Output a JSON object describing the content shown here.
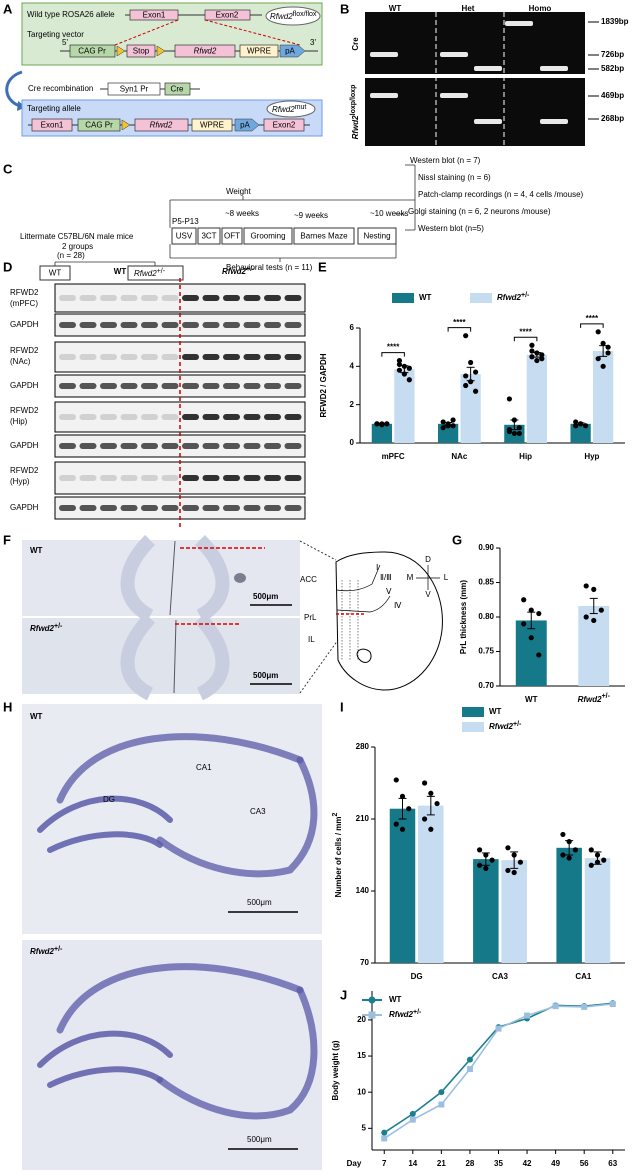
{
  "labels": [
    "A",
    "B",
    "C",
    "D",
    "E",
    "F",
    "G",
    "H",
    "I",
    "J"
  ],
  "a": {
    "wild_type": "Wild type ROSA26 allele",
    "exon1": "Exon1",
    "exon2": "Exon2",
    "flox": {
      "text": "Rfwd2",
      "sup": "flox/flox"
    },
    "vector": "Targeting vector",
    "five": "5'",
    "cag": "CAG Pr",
    "stop": "Stop",
    "rfwd2": "Rfwd2",
    "wpre": "WPRE",
    "pa": "pA",
    "three": "3'",
    "cre_recomb": "Cre recombination",
    "syn1": "Syn1 Pr",
    "cre": "Cre",
    "allele": "Targeting allele",
    "mut": {
      "text": "Rfwd2",
      "sup": "mut"
    }
  },
  "b": {
    "lanes": [
      "WT",
      "Het",
      "Homo"
    ],
    "cre": "Cre",
    "loxp": {
      "text": "Rfwd2",
      "sup": "loxp/loxp"
    },
    "sizes": [
      "1839bp",
      "726bp",
      "582bp",
      "469bp",
      "268bp"
    ]
  },
  "c": {
    "source": "Littermate C57BL/6N male mice",
    "groups": "2 groups",
    "n": "(n = 28)",
    "wt": "WT",
    "het": {
      "text": "Rfwd2",
      "sup": "+/-"
    },
    "weight": "Weight",
    "times": [
      "P5-P13",
      "~8 weeks",
      "~9 weeks",
      "~10 weeks"
    ],
    "tests": [
      "USV",
      "3CT",
      "OFT",
      "Grooming",
      "Barnes Maze",
      "Nesting"
    ],
    "behavior": "Behavioral tests (n = 11)",
    "assays": [
      "Western blot (n = 7)",
      "Nissl staining (n = 6)",
      "Patch-clamp recordings (n = 4, 4 cells /mouse)",
      "Golgi staining (n = 6, 2 neurons /mouse)",
      "Western blot (n=5)"
    ]
  },
  "d": {
    "wt": "WT",
    "het": {
      "text": "Rfwd2",
      "sup": "+/-"
    },
    "rows": [
      {
        "label": "RFWD2",
        "region": "(mPFC)"
      },
      {
        "label": "GAPDH"
      },
      {
        "label": "RFWD2",
        "region": "(NAc)"
      },
      {
        "label": "GAPDH"
      },
      {
        "label": "RFWD2",
        "region": "(Hip)"
      },
      {
        "label": "GAPDH"
      },
      {
        "label": "RFWD2",
        "region": "(Hyp)"
      },
      {
        "label": "GAPDH"
      }
    ]
  },
  "f": {
    "wt": "WT",
    "het": {
      "text": "Rfwd2",
      "sup": "+/-"
    },
    "scale": "500μm",
    "regions": [
      "ACC",
      "PrL",
      "IL"
    ],
    "layers": [
      "Ⅰ",
      "Ⅱ/Ⅲ",
      "Ⅴ",
      "Ⅳ"
    ],
    "axes": [
      "D",
      "V",
      "M",
      "L"
    ]
  },
  "h": {
    "wt": "WT",
    "het": {
      "text": "Rfwd2",
      "sup": "+/-"
    },
    "areas": [
      "CA1",
      "DG",
      "CA3"
    ],
    "scale": "500μm"
  },
  "chart_data": [
    {
      "type": "bar",
      "ylabel": "RFWD2 / GAPDH",
      "categories": [
        "mPFC",
        "NAc",
        "Hip",
        "Hyp"
      ],
      "ylim": [
        0,
        6
      ],
      "yticks": [
        0,
        2,
        4,
        6
      ],
      "legend": "top",
      "annotations": [
        "****",
        "****",
        "****",
        "****"
      ],
      "series": [
        {
          "name": "WT",
          "color": "#16798a",
          "values": [
            1.0,
            1.0,
            0.95,
            1.0
          ],
          "errors": [
            0.03,
            0.07,
            0.25,
            0.05
          ],
          "points": [
            [
              1.0,
              1.0,
              1.0,
              1.0,
              0.95,
              1.0
            ],
            [
              1.1,
              1.0,
              0.9,
              0.8,
              0.9,
              1.2
            ],
            [
              2.3,
              1.2,
              0.8,
              0.6,
              0.5,
              0.5,
              0.7
            ],
            [
              1.1,
              1.0,
              0.9,
              0.9,
              1.0
            ]
          ]
        },
        {
          "name": "Rfwd2",
          "name_sup": "+/-",
          "color": "#c6dcf1",
          "values": [
            3.85,
            3.6,
            4.6,
            4.8
          ],
          "errors": [
            0.18,
            0.35,
            0.12,
            0.28
          ],
          "points": [
            [
              4.1,
              4.0,
              3.9,
              3.8,
              3.6,
              3.3,
              4.3
            ],
            [
              5.6,
              4.2,
              3.7,
              3.5,
              3.2,
              2.7,
              3.0
            ],
            [
              5.1,
              4.7,
              4.6,
              4.5,
              4.3,
              4.4,
              4.8
            ],
            [
              5.8,
              5.2,
              4.7,
              4.4,
              4.0,
              5.0
            ]
          ]
        }
      ]
    },
    {
      "type": "bar",
      "ylabel": "PrL thickness (mm)",
      "categories": [
        "WT",
        "Rfwd2"
      ],
      "category_sup": {
        "1": "+/-"
      },
      "colors": [
        "#16798a",
        "#c6dcf1"
      ],
      "ylim": [
        0.7,
        0.9
      ],
      "yticks": [
        {
          "value": 0.7,
          "label": "0.70"
        },
        0.75,
        {
          "value": 0.8,
          "label": "0.80"
        },
        0.85,
        {
          "value": 0.9,
          "label": "0.90"
        }
      ],
      "series": [
        {
          "values": [
            0.795,
            0.816
          ],
          "errors": [
            0.012,
            0.011
          ],
          "points": [
            [
              0.825,
              0.81,
              0.805,
              0.79,
              0.77,
              0.745
            ],
            [
              0.845,
              0.84,
              0.81,
              0.8,
              0.795
            ]
          ]
        }
      ]
    },
    {
      "type": "bar",
      "ylabel": "Number of cells / mm",
      "ylabel_sup": "2",
      "categories": [
        "DG",
        "CA3",
        "CA1"
      ],
      "ylim": [
        70,
        280
      ],
      "yticks": [
        70,
        140,
        210,
        280
      ],
      "legend": "top",
      "series": [
        {
          "name": "WT",
          "color": "#16798a",
          "values": [
            220,
            171,
            182
          ],
          "errors": [
            10,
            6,
            7
          ],
          "points": [
            [
              248,
              232,
              220,
              205,
              200
            ],
            [
              180,
              175,
              170,
              165,
              162
            ],
            [
              195,
              188,
              180,
              175,
              172
            ]
          ]
        },
        {
          "name": "Rfwd2",
          "name_sup": "+/-",
          "color": "#c6dcf1",
          "values": [
            223,
            170,
            172
          ],
          "errors": [
            9,
            8,
            6
          ],
          "points": [
            [
              245,
              235,
              225,
              210,
              200
            ],
            [
              182,
              175,
              168,
              160,
              158
            ],
            [
              180,
              175,
              170,
              165,
              168
            ]
          ]
        }
      ]
    },
    {
      "type": "line",
      "xlabel": "Day",
      "ylabel": "Body weight (g)",
      "x": [
        7,
        14,
        21,
        28,
        35,
        42,
        49,
        56,
        63
      ],
      "xlim": [
        4,
        66
      ],
      "ylim": [
        2,
        24
      ],
      "yticks": [
        5,
        10,
        15,
        20
      ],
      "legend": "top-left",
      "series": [
        {
          "name": "WT",
          "color": "#1a7f8e",
          "marker": "circle",
          "values": [
            4.4,
            7.0,
            10.0,
            14.5,
            19.0,
            20.2,
            22.0,
            21.9,
            22.3
          ]
        },
        {
          "name": "Rfwd2",
          "name_sup": "+/-",
          "color": "#9cbfe0",
          "marker": "square",
          "values": [
            3.6,
            6.2,
            8.3,
            13.2,
            18.8,
            20.6,
            21.9,
            21.8,
            22.2
          ]
        }
      ]
    }
  ]
}
